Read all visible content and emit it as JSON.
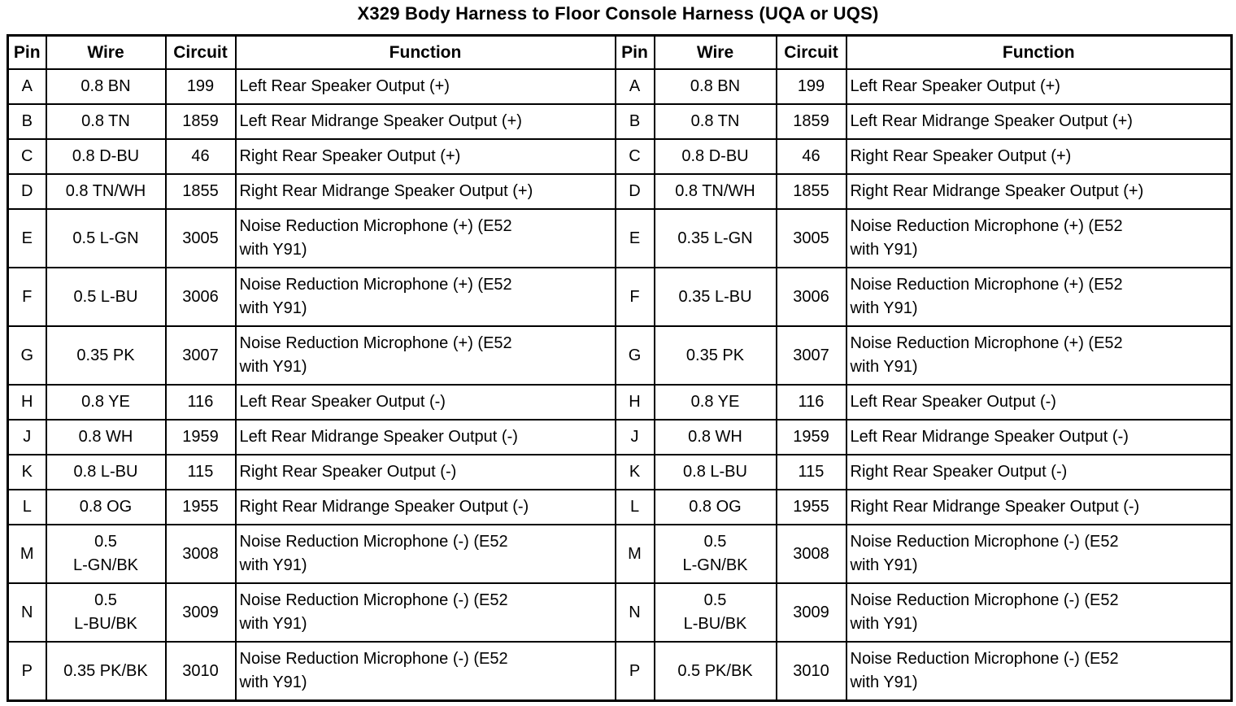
{
  "title": "X329 Body Harness to Floor Console Harness (UQA or UQS)",
  "tables": [
    {
      "headers": [
        "Pin",
        "Wire",
        "Circuit",
        "Function"
      ],
      "rows": [
        [
          "A",
          "0.8 BN",
          "199",
          "Left Rear Speaker Output (+)"
        ],
        [
          "B",
          "0.8 TN",
          "1859",
          "Left Rear Midrange Speaker Output (+)"
        ],
        [
          "C",
          "0.8 D-BU",
          "46",
          "Right Rear Speaker Output (+)"
        ],
        [
          "D",
          "0.8 TN/WH",
          "1855",
          "Right Rear Midrange Speaker Output (+)"
        ],
        [
          "E",
          "0.5 L-GN",
          "3005",
          "Noise Reduction Microphone (+) (E52\nwith Y91)"
        ],
        [
          "F",
          "0.5 L-BU",
          "3006",
          "Noise Reduction Microphone (+) (E52\nwith Y91)"
        ],
        [
          "G",
          "0.35 PK",
          "3007",
          "Noise Reduction Microphone (+) (E52\nwith Y91)"
        ],
        [
          "H",
          "0.8 YE",
          "116",
          "Left Rear Speaker Output (-)"
        ],
        [
          "J",
          "0.8 WH",
          "1959",
          "Left Rear Midrange Speaker Output (-)"
        ],
        [
          "K",
          "0.8 L-BU",
          "115",
          "Right Rear Speaker Output (-)"
        ],
        [
          "L",
          "0.8 OG",
          "1955",
          "Right Rear Midrange Speaker Output (-)"
        ],
        [
          "M",
          "0.5\nL-GN/BK",
          "3008",
          "Noise Reduction Microphone (-) (E52\nwith Y91)"
        ],
        [
          "N",
          "0.5\nL-BU/BK",
          "3009",
          "Noise Reduction Microphone (-) (E52\nwith Y91)"
        ],
        [
          "P",
          "0.35 PK/BK",
          "3010",
          "Noise Reduction Microphone (-) (E52\nwith Y91)"
        ]
      ]
    },
    {
      "headers": [
        "Pin",
        "Wire",
        "Circuit",
        "Function"
      ],
      "rows": [
        [
          "A",
          "0.8 BN",
          "199",
          "Left Rear Speaker Output (+)"
        ],
        [
          "B",
          "0.8 TN",
          "1859",
          "Left Rear Midrange Speaker Output (+)"
        ],
        [
          "C",
          "0.8 D-BU",
          "46",
          "Right Rear Speaker Output (+)"
        ],
        [
          "D",
          "0.8 TN/WH",
          "1855",
          "Right Rear Midrange Speaker Output (+)"
        ],
        [
          "E",
          "0.35 L-GN",
          "3005",
          "Noise Reduction Microphone (+) (E52\nwith Y91)"
        ],
        [
          "F",
          "0.35 L-BU",
          "3006",
          "Noise Reduction Microphone (+) (E52\nwith Y91)"
        ],
        [
          "G",
          "0.35 PK",
          "3007",
          "Noise Reduction Microphone (+) (E52\nwith Y91)"
        ],
        [
          "H",
          "0.8 YE",
          "116",
          "Left Rear Speaker Output (-)"
        ],
        [
          "J",
          "0.8 WH",
          "1959",
          "Left Rear Midrange Speaker Output (-)"
        ],
        [
          "K",
          "0.8 L-BU",
          "115",
          "Right Rear Speaker Output (-)"
        ],
        [
          "L",
          "0.8 OG",
          "1955",
          "Right Rear Midrange Speaker Output (-)"
        ],
        [
          "M",
          "0.5\nL-GN/BK",
          "3008",
          "Noise Reduction Microphone (-) (E52\nwith Y91)"
        ],
        [
          "N",
          "0.5\nL-BU/BK",
          "3009",
          "Noise Reduction Microphone (-) (E52\nwith Y91)"
        ],
        [
          "P",
          "0.5 PK/BK",
          "3010",
          "Noise Reduction Microphone (-) (E52\nwith Y91)"
        ]
      ]
    }
  ]
}
